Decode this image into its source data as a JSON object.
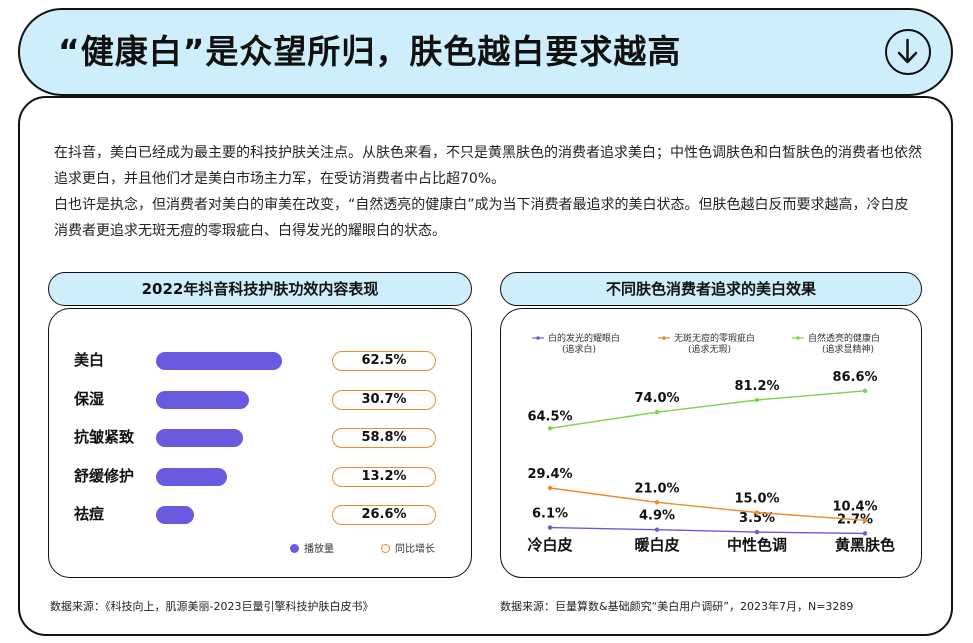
{
  "header": {
    "title": "“健康白”是众望所归，肤色越白要求越高",
    "download_icon": "arrow-down-circle-icon"
  },
  "intro": {
    "paragraph1": "在抖音，美白已经成为最主要的科技护肤关注点。从肤色来看，不只是黄黑肤色的消费者追求美白；中性色调肤色和白皙肤色的消费者也依然追求更白，并且他们才是美白市场主力军，在受访消费者中占比超70%。",
    "paragraph2": "白也许是执念，但消费者对美白的审美在改变，“自然透亮的健康白”成为当下消费者最追求的美白状态。但肤色越白反而要求越高，冷白皮消费者更追求无斑无痘的零瑕疵白、白得发光的耀眼白的状态。"
  },
  "left_panel": {
    "title": "2022年抖音科技护肤功效内容表现",
    "legend": {
      "bar": "播放量",
      "growth": "同比增长"
    },
    "source": "数据来源：《科技向上，肌源美丽-2023巨量引擎科技护肤白皮书》"
  },
  "right_panel": {
    "title": "不同肤色消费者追求的美白效果",
    "source": "数据来源：巨量算数&基础颜究“美白用户调研”，2023年7月，N=3289"
  },
  "colors": {
    "accent_bg": "#cfeefc",
    "bar": "#6a5ae0",
    "growth": "#f08a2a",
    "series_purple": "#6a5ae0",
    "series_orange": "#f08a2a",
    "series_green": "#7ed348"
  },
  "chart_data": [
    {
      "type": "bar",
      "title": "2022年抖音科技护肤功效内容表现",
      "categories": [
        "美白",
        "保湿",
        "抗皱紧致",
        "舒缓修护",
        "祛痘"
      ],
      "series": [
        {
          "name": "播放量",
          "values": [
            1.0,
            0.74,
            0.69,
            0.56,
            0.3
          ],
          "relative": true
        },
        {
          "name": "同比增长",
          "values": [
            62.5,
            30.7,
            58.8,
            13.2,
            26.6
          ],
          "labels": [
            "62.5%",
            "30.7%",
            "58.8%",
            "13.2%",
            "26.6%"
          ]
        }
      ]
    },
    {
      "type": "line",
      "title": "不同肤色消费者追求的美白效果",
      "categories": [
        "冷白皮",
        "暖白皮",
        "中性色调",
        "黄黑肤色"
      ],
      "ylim": [
        0,
        100
      ],
      "legend_position": "top",
      "series": [
        {
          "name": "白的发光的耀眼白\n(追求白)",
          "values": [
            6.1,
            4.9,
            3.5,
            2.7
          ],
          "labels": [
            "6.1%",
            "4.9%",
            "3.5%",
            "2.7%"
          ]
        },
        {
          "name": "无斑无痘的零瑕疵白\n(追求无瑕)",
          "values": [
            29.4,
            21.0,
            15.0,
            10.4
          ],
          "labels": [
            "29.4%",
            "21.0%",
            "15.0%",
            "10.4%"
          ]
        },
        {
          "name": "自然透亮的健康白\n(追求显精神)",
          "values": [
            64.5,
            74.0,
            81.2,
            86.6
          ],
          "labels": [
            "64.5%",
            "74.0%",
            "81.2%",
            "86.6%"
          ]
        }
      ]
    }
  ]
}
